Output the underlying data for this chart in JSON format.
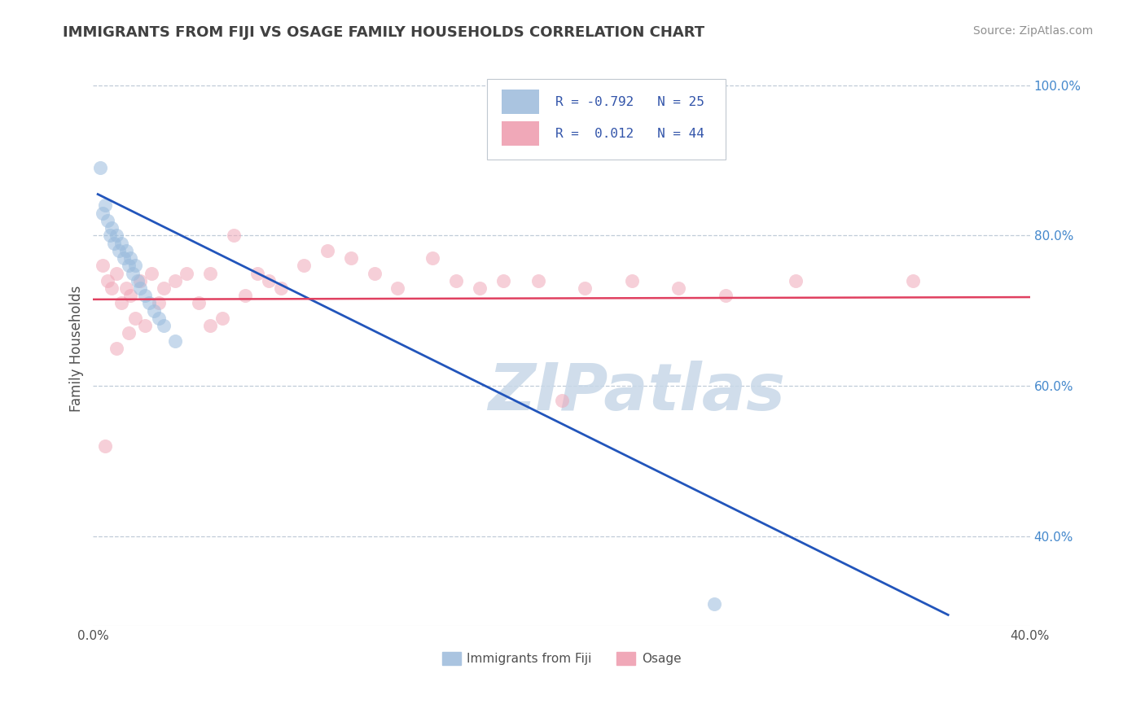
{
  "title": "IMMIGRANTS FROM FIJI VS OSAGE FAMILY HOUSEHOLDS CORRELATION CHART",
  "source_text": "Source: ZipAtlas.com",
  "ylabel": "Family Households",
  "legend_label_bottom_1": "Immigrants from Fiji",
  "legend_label_bottom_2": "Osage",
  "xlim": [
    0.0,
    0.4
  ],
  "ylim": [
    0.28,
    1.02
  ],
  "x_ticks": [
    0.0,
    0.05,
    0.1,
    0.15,
    0.2,
    0.25,
    0.3,
    0.35,
    0.4
  ],
  "x_tick_labels": [
    "0.0%",
    "",
    "",
    "",
    "",
    "",
    "",
    "",
    "40.0%"
  ],
  "y_ticks_right": [
    0.4,
    0.6,
    0.8,
    1.0
  ],
  "y_tick_labels_right": [
    "40.0%",
    "60.0%",
    "80.0%",
    "100.0%"
  ],
  "color_blue_dot": "#99bbdd",
  "color_blue_line": "#2255bb",
  "color_blue_legend": "#aac4e0",
  "color_pink_dot": "#f0a8b8",
  "color_pink_line": "#e04060",
  "color_pink_legend": "#f0a8b8",
  "color_title": "#404040",
  "color_source": "#909090",
  "color_watermark": "#c8d8e8",
  "background_color": "#ffffff",
  "grid_color": "#c0ccd8",
  "blue_dots_x": [
    0.003,
    0.004,
    0.005,
    0.006,
    0.007,
    0.008,
    0.009,
    0.01,
    0.011,
    0.012,
    0.013,
    0.014,
    0.015,
    0.016,
    0.017,
    0.018,
    0.019,
    0.02,
    0.022,
    0.024,
    0.026,
    0.028,
    0.03,
    0.035,
    0.265
  ],
  "blue_dots_y": [
    0.89,
    0.83,
    0.84,
    0.82,
    0.8,
    0.81,
    0.79,
    0.8,
    0.78,
    0.79,
    0.77,
    0.78,
    0.76,
    0.77,
    0.75,
    0.76,
    0.74,
    0.73,
    0.72,
    0.71,
    0.7,
    0.69,
    0.68,
    0.66,
    0.31
  ],
  "pink_dots_x": [
    0.004,
    0.006,
    0.008,
    0.01,
    0.012,
    0.014,
    0.016,
    0.018,
    0.02,
    0.022,
    0.025,
    0.028,
    0.03,
    0.035,
    0.04,
    0.045,
    0.05,
    0.055,
    0.06,
    0.065,
    0.07,
    0.075,
    0.08,
    0.09,
    0.1,
    0.11,
    0.12,
    0.13,
    0.145,
    0.155,
    0.165,
    0.175,
    0.19,
    0.21,
    0.23,
    0.25,
    0.27,
    0.3,
    0.35,
    0.2,
    0.005,
    0.01,
    0.015,
    0.05
  ],
  "pink_dots_y": [
    0.76,
    0.74,
    0.73,
    0.75,
    0.71,
    0.73,
    0.72,
    0.69,
    0.74,
    0.68,
    0.75,
    0.71,
    0.73,
    0.74,
    0.75,
    0.71,
    0.75,
    0.69,
    0.8,
    0.72,
    0.75,
    0.74,
    0.73,
    0.76,
    0.78,
    0.77,
    0.75,
    0.73,
    0.77,
    0.74,
    0.73,
    0.74,
    0.74,
    0.73,
    0.74,
    0.73,
    0.72,
    0.74,
    0.74,
    0.58,
    0.52,
    0.65,
    0.67,
    0.68
  ],
  "blue_line_x": [
    0.002,
    0.365
  ],
  "blue_line_y": [
    0.855,
    0.295
  ],
  "pink_line_x": [
    0.0,
    0.4
  ],
  "pink_line_y": [
    0.715,
    0.718
  ],
  "dot_size": 150,
  "dot_alpha": 0.55
}
